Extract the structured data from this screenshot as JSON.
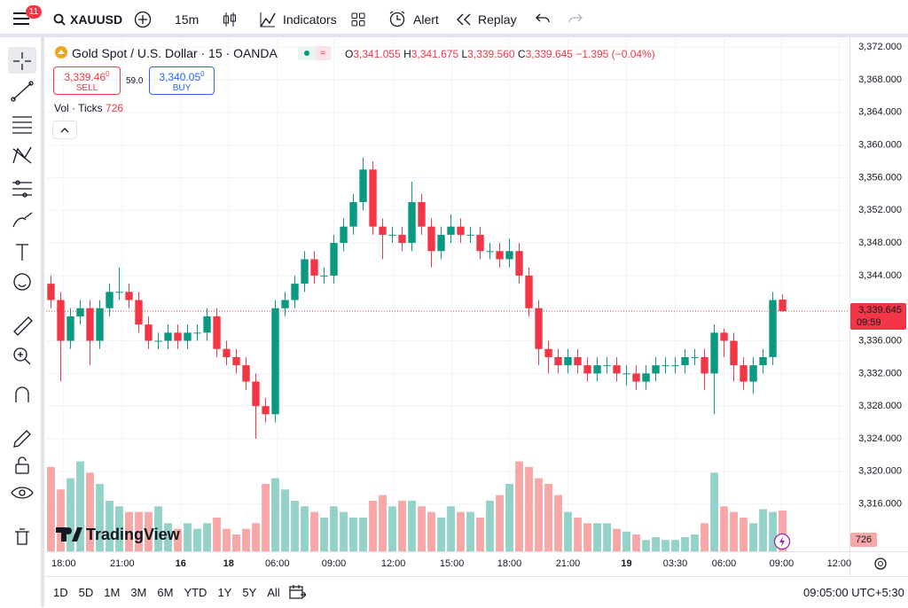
{
  "toolbar": {
    "badge": "11",
    "symbol": "XAUUSD",
    "interval": "15m",
    "indicators": "Indicators",
    "alert": "Alert",
    "replay": "Replay"
  },
  "legend": {
    "title": "Gold Spot / U.S. Dollar · 15 · OANDA",
    "o_key": "O",
    "o": "3,341.055",
    "h_key": "H",
    "h": "3,341.675",
    "l_key": "L",
    "l": "3,339.560",
    "c_key": "C",
    "c": "3,339.645",
    "change": "−1.395 (−0.04%)",
    "sell_price": "3,339.46",
    "sell_sup": "0",
    "sell": "SELL",
    "spread": "59.0",
    "buy_price": "3,340.05",
    "buy_sup": "0",
    "buy": "BUY",
    "vol_title": "Vol · Ticks"
  },
  "chart_data": {
    "type": "candlestick",
    "up_color": "#089981",
    "down_color": "#f23645",
    "volume_up_color": "#92d2c8",
    "volume_down_color": "#f7a8a6",
    "grid": true,
    "ylim": [
      3310.2,
      3373
    ],
    "yticks": [
      {
        "value": 3316,
        "label": "3,316.000"
      },
      {
        "value": 3320,
        "label": "3,320.000"
      },
      {
        "value": 3324,
        "label": "3,324.000"
      },
      {
        "value": 3328,
        "label": "3,328.000"
      },
      {
        "value": 3332,
        "label": "3,332.000"
      },
      {
        "value": 3336,
        "label": "3,336.000"
      },
      {
        "value": 3340,
        "label": "3,340.000"
      },
      {
        "value": 3344,
        "label": "3,344.000"
      },
      {
        "value": 3348,
        "label": "3,348.000"
      },
      {
        "value": 3352,
        "label": "3,352.000"
      },
      {
        "value": 3356,
        "label": "3,356.000"
      },
      {
        "value": 3360,
        "label": "3,360.000"
      },
      {
        "value": 3364,
        "label": "3,364.000"
      },
      {
        "value": 3368,
        "label": "3,368.000"
      },
      {
        "value": 3372,
        "label": "3,372.000"
      }
    ],
    "xlim": [
      0,
      82.36
    ],
    "xticks": [
      {
        "value": 1.8,
        "label": "18:00"
      },
      {
        "value": 7.8,
        "label": "21:00"
      },
      {
        "value": 13.8,
        "label": "16"
      },
      {
        "value": 18.7,
        "label": "18"
      },
      {
        "value": 23.7,
        "label": "06:00"
      },
      {
        "value": 29.5,
        "label": "09:00"
      },
      {
        "value": 35.6,
        "label": "12:00"
      },
      {
        "value": 41.6,
        "label": "15:00"
      },
      {
        "value": 47.5,
        "label": "18:00"
      },
      {
        "value": 53.5,
        "label": "21:00"
      },
      {
        "value": 59.5,
        "label": "19"
      },
      {
        "value": 64.5,
        "label": "03:30"
      },
      {
        "value": 69.5,
        "label": "06:00"
      },
      {
        "value": 75.4,
        "label": "09:00"
      },
      {
        "value": 81.3,
        "label": "12:00"
      }
    ],
    "open": [
      3343,
      3341,
      3336,
      3339,
      3340,
      3336,
      3340,
      3342,
      3342,
      3341,
      3338,
      3336,
      3336,
      3337,
      3336,
      3337,
      3337,
      3339,
      3335,
      3334,
      3333,
      3331,
      3328,
      3327,
      3340,
      3341,
      3343,
      3346,
      3344,
      3344,
      3348,
      3350,
      3353,
      3357,
      3350,
      3349,
      3349,
      3348,
      3353,
      3350,
      3347,
      3349,
      3350,
      3349,
      3349,
      3347,
      3347,
      3346,
      3347,
      3344,
      3340,
      3335,
      3334,
      3333,
      3334,
      3333,
      3332,
      3333,
      3333,
      3332,
      3332,
      3331,
      3332,
      3333,
      3333,
      3333,
      3334,
      3334,
      3332,
      3337,
      3336,
      3333,
      3331,
      3333,
      3334,
      3341.055
    ],
    "high": [
      3344,
      3342,
      3340,
      3341,
      3341,
      3341,
      3343,
      3345,
      3343,
      3342,
      3339,
      3337,
      3338,
      3338,
      3338,
      3338,
      3340,
      3340,
      3336,
      3335,
      3334,
      3332,
      3329,
      3341,
      3342,
      3344,
      3347,
      3347,
      3345,
      3349,
      3351,
      3354,
      3358.5,
      3358,
      3351,
      3350,
      3350,
      3355.5,
      3354,
      3351,
      3350,
      3351.5,
      3351,
      3350,
      3350,
      3348,
      3348,
      3348.5,
      3348,
      3345,
      3341,
      3336,
      3335,
      3335,
      3335,
      3334,
      3334,
      3334,
      3334,
      3333,
      3333,
      3333,
      3334,
      3334,
      3334,
      3335,
      3335,
      3335,
      3338,
      3337.5,
      3337,
      3334,
      3334,
      3335,
      3342,
      3341.675
    ],
    "low": [
      3340,
      3331,
      3335,
      3338,
      3333,
      3335,
      3339,
      3341,
      3340,
      3337,
      3335,
      3335,
      3335,
      3335,
      3335,
      3336,
      3336,
      3334,
      3333,
      3332,
      3330,
      3324,
      3326,
      3326,
      3339,
      3340,
      3342,
      3343,
      3343,
      3343,
      3347,
      3349,
      3352,
      3349,
      3346,
      3348,
      3347,
      3347,
      3349,
      3345,
      3346,
      3348,
      3348,
      3348,
      3346,
      3346,
      3345,
      3345,
      3343,
      3339,
      3333,
      3332,
      3332,
      3332,
      3332,
      3331,
      3331,
      3332,
      3331,
      3330.5,
      3330,
      3330,
      3331,
      3332,
      3332,
      3332,
      3333,
      3330,
      3327,
      3334,
      3331,
      3330,
      3329.5,
      3332,
      3333,
      3339.56
    ],
    "close": [
      3341,
      3336,
      3339,
      3340,
      3336,
      3340,
      3342,
      3342,
      3341,
      3338,
      3336,
      3336,
      3337,
      3336,
      3337,
      3337,
      3339,
      3335,
      3334,
      3333,
      3331,
      3328,
      3327,
      3340,
      3341,
      3343,
      3346,
      3344,
      3344,
      3348,
      3350,
      3353,
      3357,
      3350,
      3349,
      3349,
      3348,
      3353,
      3350,
      3347,
      3349,
      3350,
      3349,
      3349,
      3347,
      3347,
      3346,
      3347,
      3344,
      3340,
      3335,
      3334,
      3333,
      3334,
      3333,
      3332,
      3333,
      3333,
      3332,
      3332,
      3331,
      3332,
      3333,
      3333,
      3333,
      3334,
      3334,
      3332,
      3337,
      3336,
      3333,
      3331,
      3333,
      3334,
      3341,
      3339.645
    ],
    "vlim": [
      0,
      2240
    ],
    "volume": [
      1500,
      1100,
      1300,
      1600,
      1400,
      1200,
      900,
      800,
      700,
      700,
      700,
      800,
      500,
      400,
      500,
      400,
      500,
      600,
      400,
      300,
      400,
      500,
      1200,
      1300,
      1100,
      900,
      800,
      700,
      600,
      800,
      700,
      600,
      600,
      900,
      1000,
      800,
      900,
      900,
      800,
      700,
      600,
      800,
      700,
      700,
      600,
      900,
      1000,
      1200,
      1600,
      1500,
      1300,
      1200,
      1000,
      700,
      600,
      500,
      500,
      500,
      400,
      350,
      300,
      200,
      250,
      200,
      200,
      250,
      300,
      500,
      1400,
      800,
      700,
      600,
      500,
      750,
      700,
      726
    ],
    "price_tag": {
      "value": 3339.645,
      "label": "3,339.645"
    },
    "countdown": "09:59"
  },
  "watermark": "TradingView",
  "bottom": {
    "ranges": [
      "1D",
      "5D",
      "1M",
      "3M",
      "6M",
      "YTD",
      "1Y",
      "5Y",
      "All"
    ],
    "clock": "09:05:00 UTC+5:30"
  }
}
